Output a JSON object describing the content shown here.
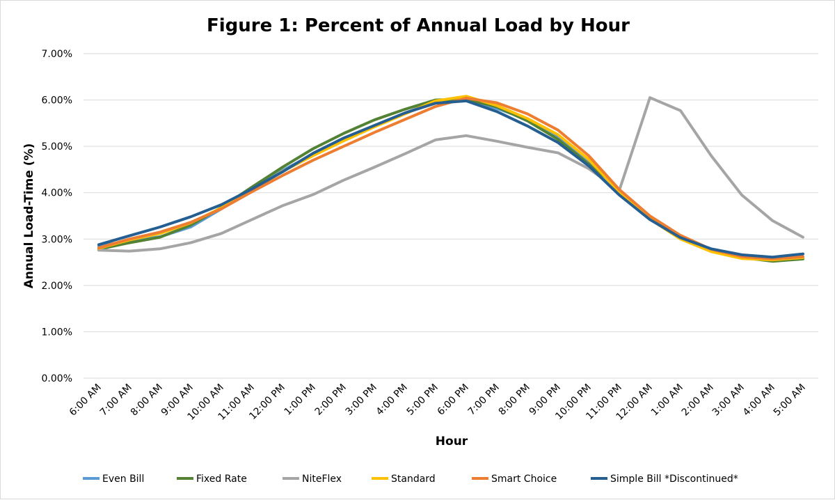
{
  "chart_data": {
    "type": "line",
    "title": "Figure 1: Percent of Annual Load by Hour",
    "xlabel": "Hour",
    "ylabel": "Annual Load-Time (%)",
    "ylim": [
      0,
      7
    ],
    "ytick_values": [
      0,
      1,
      2,
      3,
      4,
      5,
      6,
      7
    ],
    "ytick_labels": [
      "0.00%",
      "1.00%",
      "2.00%",
      "3.00%",
      "4.00%",
      "5.00%",
      "6.00%",
      "7.00%"
    ],
    "grid": true,
    "legend_position": "bottom",
    "categories": [
      "6:00 AM",
      "7:00 AM",
      "8:00 AM",
      "9:00 AM",
      "10:00 AM",
      "11:00 AM",
      "12:00 PM",
      "1:00 PM",
      "2:00 PM",
      "3:00 PM",
      "4:00 PM",
      "5:00 PM",
      "6:00 PM",
      "7:00 PM",
      "8:00 PM",
      "9:00 PM",
      "10:00 PM",
      "11:00 PM",
      "12:00 AM",
      "1:00 AM",
      "2:00 AM",
      "3:00 AM",
      "4:00 AM",
      "5:00 AM"
    ],
    "series": [
      {
        "name": "Even Bill",
        "color": "#5b9bd5",
        "values": [
          2.85,
          2.96,
          3.05,
          3.26,
          3.65,
          4.05,
          4.48,
          4.83,
          5.16,
          5.45,
          5.72,
          5.96,
          6.02,
          5.82,
          5.58,
          5.2,
          4.7,
          4.03,
          3.45,
          3.05,
          2.78,
          2.63,
          2.58,
          2.62
        ]
      },
      {
        "name": "Fixed Rate",
        "color": "#548235",
        "values": [
          2.78,
          2.92,
          3.04,
          3.3,
          3.68,
          4.12,
          4.55,
          4.95,
          5.28,
          5.57,
          5.8,
          6.0,
          6.02,
          5.85,
          5.55,
          5.15,
          4.62,
          3.98,
          3.45,
          3.05,
          2.76,
          2.6,
          2.52,
          2.57
        ]
      },
      {
        "name": "NiteFlex",
        "color": "#a5a5a5",
        "values": [
          2.76,
          2.74,
          2.79,
          2.92,
          3.12,
          3.42,
          3.72,
          3.96,
          4.27,
          4.55,
          4.84,
          5.14,
          5.23,
          5.11,
          4.98,
          4.86,
          4.52,
          4.05,
          6.05,
          5.77,
          4.8,
          3.95,
          3.4,
          3.04
        ]
      },
      {
        "name": "Standard",
        "color": "#ffc000",
        "values": [
          2.8,
          2.98,
          3.12,
          3.35,
          3.67,
          4.05,
          4.46,
          4.8,
          5.12,
          5.42,
          5.7,
          5.98,
          6.08,
          5.88,
          5.6,
          5.25,
          4.72,
          4.02,
          3.43,
          3.0,
          2.73,
          2.58,
          2.55,
          2.6
        ]
      },
      {
        "name": "Smart Choice",
        "color": "#ed7d31",
        "values": [
          2.81,
          3.0,
          3.15,
          3.36,
          3.65,
          4.02,
          4.37,
          4.7,
          5.0,
          5.3,
          5.58,
          5.86,
          6.04,
          5.94,
          5.7,
          5.35,
          4.8,
          4.07,
          3.5,
          3.08,
          2.78,
          2.62,
          2.57,
          2.62
        ]
      },
      {
        "name": "Simple Bill *Discontinued*",
        "color": "#255e91",
        "values": [
          2.88,
          3.07,
          3.26,
          3.48,
          3.74,
          4.08,
          4.45,
          4.85,
          5.18,
          5.45,
          5.72,
          5.93,
          5.98,
          5.75,
          5.44,
          5.08,
          4.58,
          3.95,
          3.42,
          3.03,
          2.79,
          2.66,
          2.61,
          2.68
        ]
      }
    ]
  }
}
